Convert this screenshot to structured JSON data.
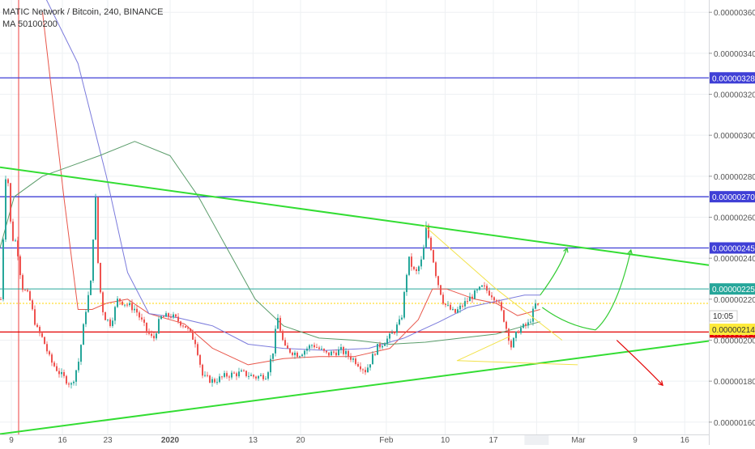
{
  "header": {
    "symbol": "MATIC Network / Bitcoin, 240, BINANCE",
    "indicator": "MA 50100200"
  },
  "chart_data": {
    "type": "candlestick",
    "title": "MATIC Network / Bitcoin, 240, BINANCE",
    "grid": true,
    "ylim": [
      1.54e-06,
      3.66e-06
    ],
    "x_ticks": [
      "9",
      "16",
      "23",
      "2020",
      "13",
      "20",
      "Feb",
      "10",
      "17",
      "14:00",
      "Mar",
      "9",
      "16"
    ],
    "y_ticks": [
      "0.00000360",
      "0.00000340",
      "0.00000320",
      "0.00000300",
      "0.00000280",
      "0.00000260",
      "0.00000240",
      "0.00000220",
      "0.00000200",
      "0.00000180",
      "0.00000160"
    ],
    "horizontal_levels": [
      {
        "value": 3.28e-06,
        "label": "0.00000328",
        "color": "#3f3fd6"
      },
      {
        "value": 2.7e-06,
        "label": "0.00000270",
        "color": "#3f3fd6"
      },
      {
        "value": 2.45e-06,
        "label": "0.00000245",
        "color": "#3f3fd6"
      },
      {
        "value": 2.25e-06,
        "label": "0.00000225",
        "color": "#26a69a"
      },
      {
        "value": 2.04e-06,
        "label": "0.00000204",
        "color": "#e30000"
      }
    ],
    "current_price": {
      "value": 2.14e-06,
      "label": "0.00000214",
      "countdown": "10:05"
    },
    "resistance_line": [
      [
        0.0,
        2.844e-06
      ],
      [
        1.0,
        2.366e-06
      ]
    ],
    "support_line": [
      [
        0.0,
        1.542e-06
      ],
      [
        1.0,
        1.996e-06
      ]
    ],
    "price_path": [
      [
        0.0,
        2.2e-06
      ],
      [
        0.008,
        2.9e-06
      ],
      [
        0.015,
        2.5e-06
      ],
      [
        0.022,
        2.48e-06
      ],
      [
        0.03,
        2.26e-06
      ],
      [
        0.04,
        2.21e-06
      ],
      [
        0.05,
        2.06e-06
      ],
      [
        0.06,
        2e-06
      ],
      [
        0.07,
        1.9e-06
      ],
      [
        0.085,
        1.83e-06
      ],
      [
        0.1,
        1.78e-06
      ],
      [
        0.11,
        1.9e-06
      ],
      [
        0.12,
        2.15e-06
      ],
      [
        0.128,
        2.3e-06
      ],
      [
        0.133,
        2.75e-06
      ],
      [
        0.138,
        2.3e-06
      ],
      [
        0.145,
        2.12e-06
      ],
      [
        0.155,
        2.08e-06
      ],
      [
        0.165,
        2.2e-06
      ],
      [
        0.175,
        2.18e-06
      ],
      [
        0.19,
        2.15e-06
      ],
      [
        0.205,
        2.05e-06
      ],
      [
        0.215,
        2e-06
      ],
      [
        0.225,
        2.11e-06
      ],
      [
        0.24,
        2.12e-06
      ],
      [
        0.26,
        2.07e-06
      ],
      [
        0.275,
        1.99e-06
      ],
      [
        0.285,
        1.82e-06
      ],
      [
        0.3,
        1.8e-06
      ],
      [
        0.32,
        1.83e-06
      ],
      [
        0.34,
        1.84e-06
      ],
      [
        0.36,
        1.82e-06
      ],
      [
        0.375,
        1.83e-06
      ],
      [
        0.385,
        1.96e-06
      ],
      [
        0.39,
        2.12e-06
      ],
      [
        0.4,
        1.96e-06
      ],
      [
        0.42,
        1.93e-06
      ],
      [
        0.44,
        1.98e-06
      ],
      [
        0.46,
        1.93e-06
      ],
      [
        0.48,
        1.95e-06
      ],
      [
        0.5,
        1.9e-06
      ],
      [
        0.515,
        1.85e-06
      ],
      [
        0.53,
        1.96e-06
      ],
      [
        0.55,
        2.02e-06
      ],
      [
        0.565,
        2.1e-06
      ],
      [
        0.575,
        2.4e-06
      ],
      [
        0.585,
        2.32e-06
      ],
      [
        0.595,
        2.4e-06
      ],
      [
        0.6,
        2.55e-06
      ],
      [
        0.607,
        2.45e-06
      ],
      [
        0.615,
        2.3e-06
      ],
      [
        0.625,
        2.18e-06
      ],
      [
        0.64,
        2.13e-06
      ],
      [
        0.66,
        2.2e-06
      ],
      [
        0.68,
        2.26e-06
      ],
      [
        0.7,
        2.2e-06
      ],
      [
        0.71,
        2.1e-06
      ],
      [
        0.72,
        1.97e-06
      ],
      [
        0.73,
        2.05e-06
      ],
      [
        0.745,
        2.08e-06
      ],
      [
        0.755,
        2.18e-06
      ],
      [
        0.762,
        2.14e-06
      ]
    ],
    "ma_lines": [
      {
        "name": "MA 50",
        "color": "#e8564a",
        "points": [
          [
            0.06,
            3.6e-06
          ],
          [
            0.09,
            2.7e-06
          ],
          [
            0.11,
            2.15e-06
          ],
          [
            0.13,
            2.15e-06
          ],
          [
            0.15,
            2.18e-06
          ],
          [
            0.18,
            2.2e-06
          ],
          [
            0.21,
            2.13e-06
          ],
          [
            0.26,
            2.08e-06
          ],
          [
            0.3,
            1.96e-06
          ],
          [
            0.35,
            1.88e-06
          ],
          [
            0.4,
            1.91e-06
          ],
          [
            0.45,
            1.92e-06
          ],
          [
            0.5,
            1.92e-06
          ],
          [
            0.55,
            1.96e-06
          ],
          [
            0.59,
            2.1e-06
          ],
          [
            0.61,
            2.25e-06
          ],
          [
            0.63,
            2.25e-06
          ],
          [
            0.67,
            2.2e-06
          ],
          [
            0.7,
            2.18e-06
          ],
          [
            0.73,
            2.12e-06
          ],
          [
            0.762,
            2.15e-06
          ]
        ]
      },
      {
        "name": "MA 100",
        "color": "#7b7bdc",
        "points": [
          [
            0.06,
            3.7e-06
          ],
          [
            0.11,
            3.35e-06
          ],
          [
            0.15,
            2.8e-06
          ],
          [
            0.18,
            2.33e-06
          ],
          [
            0.21,
            2.13e-06
          ],
          [
            0.25,
            2.11e-06
          ],
          [
            0.3,
            2.07e-06
          ],
          [
            0.35,
            1.98e-06
          ],
          [
            0.4,
            1.96e-06
          ],
          [
            0.46,
            1.95e-06
          ],
          [
            0.52,
            1.96e-06
          ],
          [
            0.57,
            2.01e-06
          ],
          [
            0.62,
            2.09e-06
          ],
          [
            0.66,
            2.16e-06
          ],
          [
            0.7,
            2.19e-06
          ],
          [
            0.74,
            2.22e-06
          ],
          [
            0.762,
            2.22e-06
          ]
        ]
      },
      {
        "name": "MA 200",
        "color": "#5a9c6a",
        "points": [
          [
            0.0,
            2.45e-06
          ],
          [
            0.02,
            2.7e-06
          ],
          [
            0.06,
            2.8e-06
          ],
          [
            0.1,
            2.85e-06
          ],
          [
            0.14,
            2.9e-06
          ],
          [
            0.19,
            2.97e-06
          ],
          [
            0.24,
            2.9e-06
          ],
          [
            0.28,
            2.7e-06
          ],
          [
            0.32,
            2.45e-06
          ],
          [
            0.36,
            2.2e-06
          ],
          [
            0.4,
            2.07e-06
          ],
          [
            0.45,
            2.01e-06
          ],
          [
            0.5,
            2e-06
          ],
          [
            0.55,
            1.98e-06
          ],
          [
            0.6,
            1.99e-06
          ],
          [
            0.65,
            2.01e-06
          ],
          [
            0.7,
            2.03e-06
          ],
          [
            0.74,
            2.07e-06
          ],
          [
            0.762,
            2.09e-06
          ]
        ]
      }
    ],
    "annotations": [
      {
        "type": "triangle",
        "color": "#f2e24a",
        "points": [
          [
            0.598,
            2.56e-06
          ],
          [
            0.7,
            2.25e-06
          ],
          [
            0.793,
            2e-06
          ],
          [
            0.72,
            2.02e-06
          ],
          [
            0.645,
            1.9e-06
          ],
          [
            0.815,
            1.88e-06
          ]
        ]
      },
      {
        "type": "up-arrow-short",
        "color": "#33cc33",
        "points": [
          [
            0.762,
            2.22e-06
          ],
          [
            0.79,
            2.35e-06
          ],
          [
            0.8,
            2.45e-06
          ]
        ]
      },
      {
        "type": "up-arrow-long",
        "color": "#33cc33",
        "points": [
          [
            0.765,
            2.16e-06
          ],
          [
            0.8,
            2.07e-06
          ],
          [
            0.84,
            2.05e-06
          ],
          [
            0.87,
            2.14e-06
          ],
          [
            0.89,
            2.44e-06
          ]
        ]
      },
      {
        "type": "down-arrow",
        "color": "#e30000",
        "points": [
          [
            0.87,
            2e-06
          ],
          [
            0.91,
            1.87e-06
          ],
          [
            0.935,
            1.78e-06
          ]
        ]
      }
    ]
  }
}
